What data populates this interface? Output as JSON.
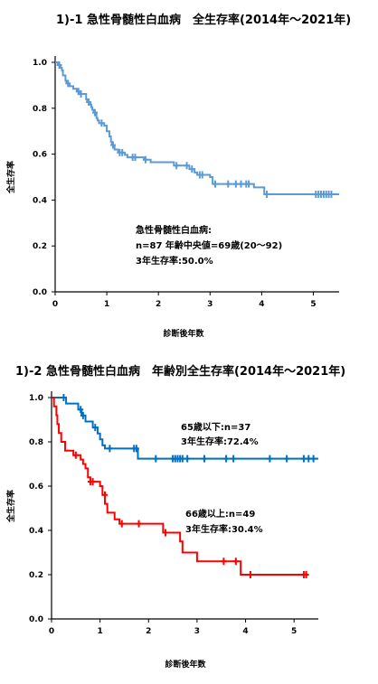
{
  "chart_data": [
    {
      "type": "line",
      "title": "1)-1 急性骨髄性白血病　全生存率(2014年～2021年)",
      "xlabel": "診断後年数",
      "ylabel": "全生存率",
      "xlim": [
        0,
        5.5
      ],
      "ylim": [
        0,
        1.0
      ],
      "xticks": [
        "0",
        "1",
        "2",
        "3",
        "4",
        "5"
      ],
      "yticks": [
        "0.0",
        "0.2",
        "0.4",
        "0.6",
        "0.8",
        "1.0"
      ],
      "grid": false,
      "annotations": [
        "急性骨髄性白血病:",
        "n=87 年齢中央値=69歳(20～92)",
        "3年生存率:50.0%"
      ],
      "series": [
        {
          "color": "#5b9bd5",
          "steps": [
            [
              0,
              1.0
            ],
            [
              0.05,
              0.988
            ],
            [
              0.1,
              0.977
            ],
            [
              0.13,
              0.965
            ],
            [
              0.15,
              0.943
            ],
            [
              0.2,
              0.92
            ],
            [
              0.22,
              0.908
            ],
            [
              0.28,
              0.896
            ],
            [
              0.35,
              0.885
            ],
            [
              0.42,
              0.873
            ],
            [
              0.48,
              0.862
            ],
            [
              0.6,
              0.839
            ],
            [
              0.62,
              0.827
            ],
            [
              0.68,
              0.816
            ],
            [
              0.7,
              0.804
            ],
            [
              0.72,
              0.793
            ],
            [
              0.75,
              0.781
            ],
            [
              0.8,
              0.758
            ],
            [
              0.82,
              0.747
            ],
            [
              0.85,
              0.735
            ],
            [
              0.95,
              0.724
            ],
            [
              1.0,
              0.7
            ],
            [
              1.05,
              0.677
            ],
            [
              1.08,
              0.654
            ],
            [
              1.1,
              0.64
            ],
            [
              1.15,
              0.62
            ],
            [
              1.22,
              0.607
            ],
            [
              1.35,
              0.597
            ],
            [
              1.4,
              0.586
            ],
            [
              1.72,
              0.576
            ],
            [
              1.85,
              0.565
            ],
            [
              2.3,
              0.55
            ],
            [
              2.6,
              0.535
            ],
            [
              2.7,
              0.52
            ],
            [
              2.75,
              0.51
            ],
            [
              3.0,
              0.5
            ],
            [
              3.05,
              0.47
            ],
            [
              3.85,
              0.455
            ],
            [
              4.05,
              0.425
            ]
          ],
          "end": 5.5,
          "censor": [
            [
              0.08,
              0.988
            ],
            [
              0.25,
              0.908
            ],
            [
              0.45,
              0.873
            ],
            [
              0.5,
              0.862
            ],
            [
              0.65,
              0.827
            ],
            [
              0.77,
              0.781
            ],
            [
              0.9,
              0.735
            ],
            [
              1.12,
              0.64
            ],
            [
              1.25,
              0.607
            ],
            [
              1.3,
              0.607
            ],
            [
              1.5,
              0.586
            ],
            [
              1.55,
              0.586
            ],
            [
              1.75,
              0.576
            ],
            [
              2.35,
              0.55
            ],
            [
              2.55,
              0.55
            ],
            [
              2.65,
              0.535
            ],
            [
              2.8,
              0.51
            ],
            [
              2.85,
              0.51
            ],
            [
              3.1,
              0.47
            ],
            [
              3.35,
              0.47
            ],
            [
              3.5,
              0.47
            ],
            [
              3.6,
              0.47
            ],
            [
              3.7,
              0.47
            ],
            [
              3.75,
              0.47
            ],
            [
              4.1,
              0.425
            ],
            [
              5.05,
              0.425
            ],
            [
              5.1,
              0.425
            ],
            [
              5.15,
              0.425
            ],
            [
              5.2,
              0.425
            ],
            [
              5.25,
              0.425
            ],
            [
              5.3,
              0.425
            ],
            [
              5.35,
              0.425
            ]
          ]
        }
      ]
    },
    {
      "type": "line",
      "title": "1)-2 急性骨髄性白血病　年齢別全生存率(2014年～2021年)",
      "xlabel": "診断後年数",
      "ylabel": "全生存率",
      "xlim": [
        0,
        5.5
      ],
      "ylim": [
        0,
        1.0
      ],
      "xticks": [
        "0",
        "1",
        "2",
        "3",
        "4",
        "5"
      ],
      "yticks": [
        "0.0",
        "0.2",
        "0.4",
        "0.6",
        "0.8",
        "1.0"
      ],
      "grid": false,
      "series": [
        {
          "name": "65歳以下",
          "label_lines": [
            "65歳以下:n=37",
            "3年生存率:72.4%"
          ],
          "color": "#0070c0",
          "steps": [
            [
              0,
              1.0
            ],
            [
              0.3,
              0.973
            ],
            [
              0.55,
              0.946
            ],
            [
              0.62,
              0.919
            ],
            [
              0.7,
              0.892
            ],
            [
              0.85,
              0.865
            ],
            [
              0.95,
              0.838
            ],
            [
              1.0,
              0.811
            ],
            [
              1.05,
              0.784
            ],
            [
              1.1,
              0.77
            ],
            [
              1.78,
              0.724
            ]
          ],
          "end": 5.5,
          "censor": [
            [
              0.25,
              1.0
            ],
            [
              0.6,
              0.946
            ],
            [
              0.65,
              0.919
            ],
            [
              0.9,
              0.865
            ],
            [
              1.2,
              0.77
            ],
            [
              1.7,
              0.77
            ],
            [
              1.75,
              0.77
            ],
            [
              2.15,
              0.724
            ],
            [
              2.5,
              0.724
            ],
            [
              2.55,
              0.724
            ],
            [
              2.6,
              0.724
            ],
            [
              2.65,
              0.724
            ],
            [
              2.7,
              0.724
            ],
            [
              2.8,
              0.724
            ],
            [
              3.15,
              0.724
            ],
            [
              3.6,
              0.724
            ],
            [
              3.75,
              0.724
            ],
            [
              4.5,
              0.724
            ],
            [
              4.85,
              0.724
            ],
            [
              5.2,
              0.724
            ],
            [
              5.3,
              0.724
            ],
            [
              5.4,
              0.724
            ]
          ]
        },
        {
          "name": "66歳以上",
          "label_lines": [
            "66歳以上:n=49",
            "3年生存率:30.4%"
          ],
          "color": "#ff0000",
          "steps": [
            [
              0,
              1.0
            ],
            [
              0.05,
              0.96
            ],
            [
              0.1,
              0.92
            ],
            [
              0.12,
              0.88
            ],
            [
              0.15,
              0.84
            ],
            [
              0.2,
              0.8
            ],
            [
              0.28,
              0.76
            ],
            [
              0.45,
              0.74
            ],
            [
              0.6,
              0.72
            ],
            [
              0.65,
              0.7
            ],
            [
              0.7,
              0.68
            ],
            [
              0.75,
              0.64
            ],
            [
              0.8,
              0.62
            ],
            [
              1.0,
              0.6
            ],
            [
              1.05,
              0.56
            ],
            [
              1.1,
              0.52
            ],
            [
              1.15,
              0.48
            ],
            [
              1.3,
              0.45
            ],
            [
              1.4,
              0.43
            ],
            [
              2.3,
              0.39
            ],
            [
              2.65,
              0.35
            ],
            [
              2.7,
              0.3
            ],
            [
              3.0,
              0.26
            ],
            [
              3.9,
              0.2
            ]
          ],
          "end": 5.3,
          "censor": [
            [
              0.5,
              0.74
            ],
            [
              0.8,
              0.62
            ],
            [
              0.85,
              0.62
            ],
            [
              1.1,
              0.56
            ],
            [
              1.45,
              0.43
            ],
            [
              1.8,
              0.43
            ],
            [
              2.35,
              0.39
            ],
            [
              3.55,
              0.26
            ],
            [
              3.8,
              0.26
            ],
            [
              4.1,
              0.2
            ],
            [
              5.2,
              0.2
            ],
            [
              5.25,
              0.2
            ]
          ]
        }
      ]
    }
  ]
}
